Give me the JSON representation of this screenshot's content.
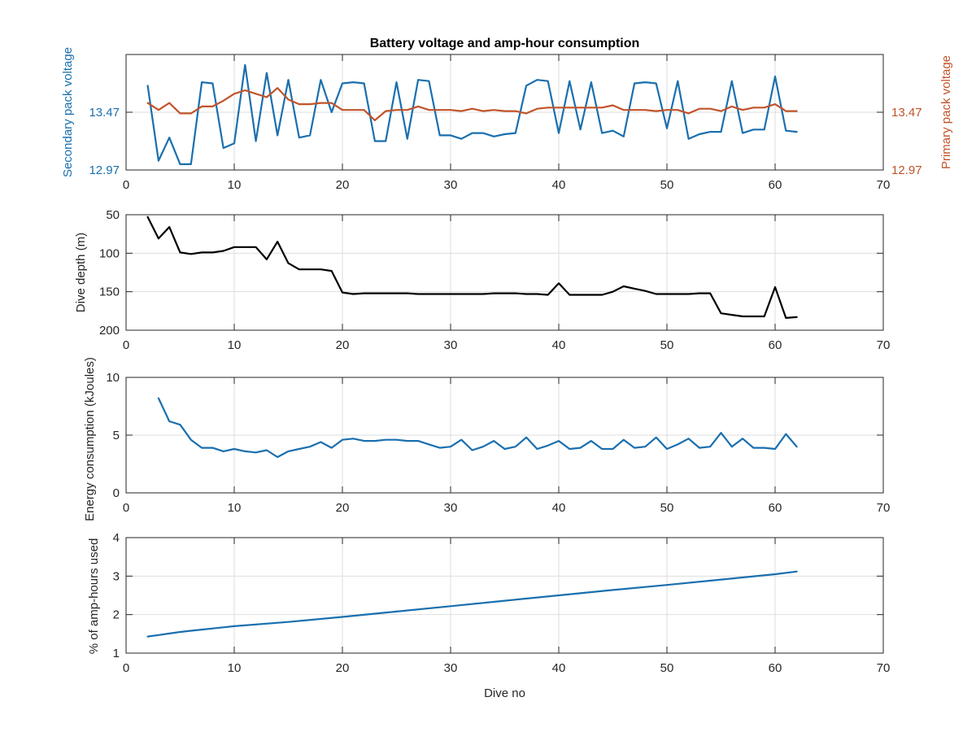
{
  "colors": {
    "blue": "#1a6faf",
    "orange": "#c1532a",
    "black": "#000000"
  },
  "chart_data": [
    {
      "type": "line",
      "title": "Battery voltage and amp-hour consumption",
      "xlabel": "",
      "ylabel_left": "Secondary pack voltage",
      "ylabel_right": "Primary pack voltage",
      "xlim": [
        0,
        70
      ],
      "xticks": [
        "0",
        "10",
        "20",
        "30",
        "40",
        "50",
        "60",
        "70"
      ],
      "yticks_left": [
        "12.97",
        "13.47"
      ],
      "yticks_right": [
        "12.97",
        "13.47"
      ],
      "ylim": [
        12.97,
        13.97
      ],
      "grid": true,
      "series": [
        {
          "color": "blue",
          "axis": "left",
          "x": [
            2,
            3,
            4,
            5,
            6,
            7,
            8,
            9,
            10,
            11,
            12,
            13,
            14,
            15,
            16,
            17,
            18,
            19,
            20,
            21,
            22,
            23,
            24,
            25,
            26,
            27,
            28,
            29,
            30,
            31,
            32,
            33,
            34,
            35,
            36,
            37,
            38,
            39,
            40,
            41,
            42,
            43,
            44,
            45,
            46,
            47,
            48,
            49,
            50,
            51,
            52,
            53,
            54,
            55,
            56,
            57,
            58,
            59,
            60,
            61,
            62
          ],
          "values": [
            13.7,
            13.05,
            13.25,
            13.02,
            13.02,
            13.73,
            13.72,
            13.16,
            13.2,
            13.88,
            13.22,
            13.81,
            13.27,
            13.75,
            13.25,
            13.27,
            13.75,
            13.47,
            13.72,
            13.73,
            13.72,
            13.22,
            13.22,
            13.73,
            13.24,
            13.75,
            13.74,
            13.27,
            13.27,
            13.24,
            13.29,
            13.29,
            13.26,
            13.28,
            13.29,
            13.7,
            13.75,
            13.74,
            13.29,
            13.74,
            13.32,
            13.73,
            13.29,
            13.31,
            13.26,
            13.72,
            13.73,
            13.72,
            13.33,
            13.74,
            13.24,
            13.28,
            13.3,
            13.3,
            13.74,
            13.29,
            13.32,
            13.32,
            13.78,
            13.31,
            13.3
          ]
        },
        {
          "color": "orange",
          "axis": "right",
          "x": [
            2,
            3,
            4,
            5,
            6,
            7,
            8,
            9,
            10,
            11,
            12,
            13,
            14,
            15,
            16,
            17,
            18,
            19,
            20,
            21,
            22,
            23,
            24,
            25,
            26,
            27,
            28,
            29,
            30,
            31,
            32,
            33,
            34,
            35,
            36,
            37,
            38,
            39,
            40,
            41,
            42,
            43,
            44,
            45,
            46,
            47,
            48,
            49,
            50,
            51,
            52,
            53,
            54,
            55,
            56,
            57,
            58,
            59,
            60,
            61,
            62
          ],
          "values": [
            13.55,
            13.49,
            13.55,
            13.46,
            13.46,
            13.52,
            13.52,
            13.57,
            13.63,
            13.66,
            13.63,
            13.6,
            13.68,
            13.58,
            13.54,
            13.54,
            13.55,
            13.55,
            13.49,
            13.49,
            13.49,
            13.4,
            13.48,
            13.49,
            13.49,
            13.52,
            13.49,
            13.49,
            13.49,
            13.48,
            13.5,
            13.48,
            13.49,
            13.48,
            13.48,
            13.46,
            13.5,
            13.51,
            13.51,
            13.51,
            13.51,
            13.51,
            13.51,
            13.53,
            13.49,
            13.49,
            13.49,
            13.48,
            13.49,
            13.49,
            13.46,
            13.5,
            13.5,
            13.48,
            13.52,
            13.49,
            13.51,
            13.51,
            13.54,
            13.48,
            13.48
          ]
        }
      ]
    },
    {
      "type": "line",
      "title": "",
      "xlabel": "",
      "ylabel": "Dive depth (m)",
      "xlim": [
        0,
        70
      ],
      "ylim": [
        50,
        200
      ],
      "reversed_y": true,
      "xticks": [
        "0",
        "10",
        "20",
        "30",
        "40",
        "50",
        "60",
        "70"
      ],
      "yticks": [
        "50",
        "100",
        "150",
        "200"
      ],
      "grid": true,
      "series": [
        {
          "color": "black",
          "x": [
            2,
            3,
            4,
            5,
            6,
            7,
            8,
            9,
            10,
            11,
            12,
            13,
            14,
            15,
            16,
            17,
            18,
            19,
            20,
            21,
            22,
            23,
            24,
            25,
            26,
            27,
            28,
            29,
            30,
            31,
            32,
            33,
            34,
            35,
            36,
            37,
            38,
            39,
            40,
            41,
            42,
            43,
            44,
            45,
            46,
            47,
            48,
            49,
            50,
            51,
            52,
            53,
            54,
            55,
            56,
            57,
            58,
            59,
            60,
            61,
            62
          ],
          "values": [
            53,
            81,
            66,
            99,
            101,
            99,
            99,
            97,
            92,
            92,
            92,
            108,
            85,
            113,
            121,
            121,
            121,
            123,
            151,
            153,
            152,
            152,
            152,
            152,
            152,
            153,
            153,
            153,
            153,
            153,
            153,
            153,
            152,
            152,
            152,
            153,
            153,
            154,
            139,
            154,
            154,
            154,
            154,
            150,
            143,
            146,
            149,
            153,
            153,
            153,
            153,
            152,
            152,
            178,
            180,
            182,
            182,
            182,
            144,
            184,
            183
          ]
        }
      ]
    },
    {
      "type": "line",
      "title": "",
      "xlabel": "",
      "ylabel": "Energy consumption (kJoules)",
      "xlim": [
        0,
        70
      ],
      "ylim": [
        0,
        10
      ],
      "xticks": [
        "0",
        "10",
        "20",
        "30",
        "40",
        "50",
        "60",
        "70"
      ],
      "yticks": [
        "0",
        "5",
        "10"
      ],
      "grid": true,
      "series": [
        {
          "color": "blue",
          "x": [
            3,
            4,
            5,
            6,
            7,
            8,
            9,
            10,
            11,
            12,
            13,
            14,
            15,
            16,
            17,
            18,
            19,
            20,
            21,
            22,
            23,
            24,
            25,
            26,
            27,
            28,
            29,
            30,
            31,
            32,
            33,
            34,
            35,
            36,
            37,
            38,
            39,
            40,
            41,
            42,
            43,
            44,
            45,
            46,
            47,
            48,
            49,
            50,
            51,
            52,
            53,
            54,
            55,
            56,
            57,
            58,
            59,
            60,
            61,
            62
          ],
          "values": [
            8.2,
            6.2,
            5.9,
            4.6,
            3.9,
            3.9,
            3.6,
            3.8,
            3.6,
            3.5,
            3.7,
            3.1,
            3.6,
            3.8,
            4.0,
            4.4,
            3.9,
            4.6,
            4.7,
            4.5,
            4.5,
            4.6,
            4.6,
            4.5,
            4.5,
            4.2,
            3.9,
            4.0,
            4.6,
            3.7,
            4.0,
            4.5,
            3.8,
            4.0,
            4.8,
            3.8,
            4.1,
            4.5,
            3.8,
            3.9,
            4.5,
            3.8,
            3.8,
            4.6,
            3.9,
            4.0,
            4.8,
            3.8,
            4.2,
            4.7,
            3.9,
            4.0,
            5.2,
            4.0,
            4.7,
            3.9,
            3.9,
            3.8,
            5.1,
            4.0
          ]
        }
      ]
    },
    {
      "type": "line",
      "title": "",
      "xlabel": "Dive no",
      "ylabel": "% of amp-hours used",
      "xlim": [
        0,
        70
      ],
      "ylim": [
        1,
        4
      ],
      "xticks": [
        "0",
        "10",
        "20",
        "30",
        "40",
        "50",
        "60",
        "70"
      ],
      "yticks": [
        "1",
        "2",
        "3",
        "4"
      ],
      "grid": true,
      "series": [
        {
          "color": "blue",
          "x": [
            2,
            3,
            4,
            5,
            6,
            7,
            8,
            9,
            10,
            15,
            20,
            25,
            30,
            35,
            40,
            45,
            50,
            55,
            60,
            62
          ],
          "values": [
            1.43,
            1.47,
            1.51,
            1.55,
            1.58,
            1.61,
            1.64,
            1.67,
            1.7,
            1.81,
            1.94,
            2.08,
            2.22,
            2.36,
            2.5,
            2.64,
            2.77,
            2.91,
            3.05,
            3.12
          ]
        }
      ]
    }
  ]
}
